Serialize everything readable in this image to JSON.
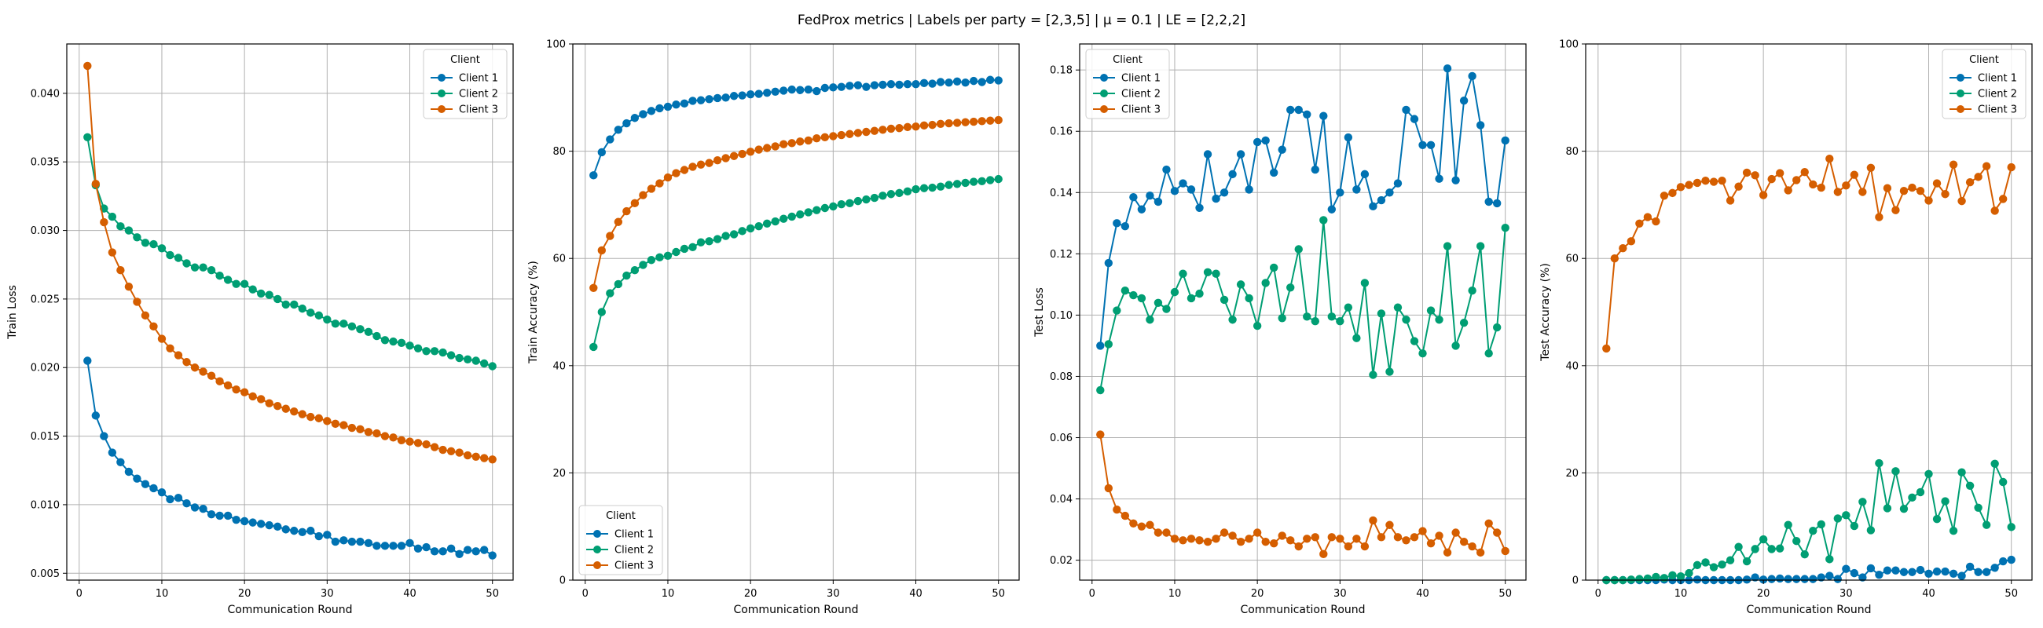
{
  "suptitle": "FedProx metrics | Labels per party = [2,3,5] | μ = 0.1 | LE = [2,2,2]",
  "legend_title": "Client",
  "series_names": [
    "Client 1",
    "Client 2",
    "Client 3"
  ],
  "colors": {
    "Client 1": "#0072b2",
    "Client 2": "#009e73",
    "Client 3": "#d55e00",
    "grid": "#b0b0b0"
  },
  "chart_data": [
    {
      "type": "line",
      "title": "",
      "xlabel": "Communication Round",
      "ylabel": "Train Loss",
      "xlim": [
        -1.5,
        52.5
      ],
      "ylim": [
        0.0045,
        0.0436
      ],
      "xticks": [
        0,
        10,
        20,
        30,
        40,
        50
      ],
      "yticks": [
        0.005,
        0.01,
        0.015,
        0.02,
        0.025,
        0.03,
        0.035,
        0.04
      ],
      "ytick_decimals": 3,
      "legend": "top-right",
      "grid": true,
      "x": [
        1,
        2,
        3,
        4,
        5,
        6,
        7,
        8,
        9,
        10,
        11,
        12,
        13,
        14,
        15,
        16,
        17,
        18,
        19,
        20,
        21,
        22,
        23,
        24,
        25,
        26,
        27,
        28,
        29,
        30,
        31,
        32,
        33,
        34,
        35,
        36,
        37,
        38,
        39,
        40,
        41,
        42,
        43,
        44,
        45,
        46,
        47,
        48,
        49,
        50
      ],
      "series": [
        {
          "name": "Client 1",
          "values": [
            0.0205,
            0.0165,
            0.015,
            0.0138,
            0.0131,
            0.0124,
            0.0119,
            0.0115,
            0.0112,
            0.0109,
            0.0104,
            0.0105,
            0.0101,
            0.0098,
            0.0097,
            0.0093,
            0.0092,
            0.0092,
            0.0089,
            0.0088,
            0.0087,
            0.0086,
            0.0085,
            0.0084,
            0.0082,
            0.0081,
            0.008,
            0.0081,
            0.0077,
            0.0078,
            0.0073,
            0.0074,
            0.0073,
            0.0073,
            0.0072,
            0.007,
            0.007,
            0.007,
            0.007,
            0.0072,
            0.0068,
            0.0069,
            0.0066,
            0.0066,
            0.0068,
            0.0064,
            0.0067,
            0.0066,
            0.0067,
            0.0063
          ]
        },
        {
          "name": "Client 2",
          "values": [
            0.0368,
            0.0333,
            0.0316,
            0.031,
            0.0303,
            0.03,
            0.0295,
            0.0291,
            0.029,
            0.0287,
            0.0282,
            0.028,
            0.0276,
            0.0273,
            0.0273,
            0.0271,
            0.0267,
            0.0264,
            0.0261,
            0.0261,
            0.0257,
            0.0254,
            0.0253,
            0.025,
            0.0246,
            0.0246,
            0.0243,
            0.024,
            0.0238,
            0.0235,
            0.0232,
            0.0232,
            0.023,
            0.0228,
            0.0226,
            0.0223,
            0.022,
            0.0219,
            0.0218,
            0.0216,
            0.0214,
            0.0212,
            0.0212,
            0.0211,
            0.0209,
            0.0207,
            0.0206,
            0.0205,
            0.0203,
            0.0201
          ]
        },
        {
          "name": "Client 3",
          "values": [
            0.042,
            0.0334,
            0.0306,
            0.0284,
            0.0271,
            0.0259,
            0.0248,
            0.0238,
            0.023,
            0.0221,
            0.0214,
            0.0209,
            0.0204,
            0.02,
            0.0197,
            0.0194,
            0.019,
            0.0187,
            0.0184,
            0.0182,
            0.0179,
            0.0177,
            0.0174,
            0.0172,
            0.017,
            0.0168,
            0.0166,
            0.0164,
            0.0163,
            0.0161,
            0.0159,
            0.0158,
            0.0156,
            0.0155,
            0.0153,
            0.0152,
            0.015,
            0.0149,
            0.0147,
            0.0146,
            0.0145,
            0.0144,
            0.0142,
            0.014,
            0.0139,
            0.0138,
            0.0136,
            0.0135,
            0.0134,
            0.0133
          ]
        }
      ]
    },
    {
      "type": "line",
      "title": "",
      "xlabel": "Communication Round",
      "ylabel": "Train Accuracy (%)",
      "xlim": [
        -1.5,
        52.5
      ],
      "ylim": [
        0,
        100
      ],
      "xticks": [
        0,
        10,
        20,
        30,
        40,
        50
      ],
      "yticks": [
        0,
        20,
        40,
        60,
        80,
        100
      ],
      "ytick_decimals": 0,
      "legend": "bottom-left",
      "grid": true,
      "x": [
        1,
        2,
        3,
        4,
        5,
        6,
        7,
        8,
        9,
        10,
        11,
        12,
        13,
        14,
        15,
        16,
        17,
        18,
        19,
        20,
        21,
        22,
        23,
        24,
        25,
        26,
        27,
        28,
        29,
        30,
        31,
        32,
        33,
        34,
        35,
        36,
        37,
        38,
        39,
        40,
        41,
        42,
        43,
        44,
        45,
        46,
        47,
        48,
        49,
        50
      ],
      "series": [
        {
          "name": "Client 1",
          "values": [
            75.5,
            79.8,
            82.2,
            84.0,
            85.2,
            86.2,
            86.9,
            87.5,
            88.0,
            88.3,
            88.7,
            88.9,
            89.4,
            89.5,
            89.7,
            89.9,
            90.0,
            90.3,
            90.4,
            90.6,
            90.7,
            90.9,
            91.1,
            91.3,
            91.5,
            91.4,
            91.5,
            91.2,
            91.8,
            91.9,
            92.0,
            92.2,
            92.3,
            92.0,
            92.3,
            92.4,
            92.5,
            92.4,
            92.5,
            92.5,
            92.7,
            92.6,
            92.9,
            92.8,
            93.0,
            92.8,
            93.1,
            92.9,
            93.3,
            93.2
          ]
        },
        {
          "name": "Client 2",
          "values": [
            43.5,
            50.0,
            53.5,
            55.2,
            56.8,
            57.8,
            58.8,
            59.7,
            60.2,
            60.5,
            61.2,
            61.8,
            62.1,
            63.0,
            63.2,
            63.6,
            64.2,
            64.5,
            65.1,
            65.6,
            66.0,
            66.5,
            66.9,
            67.4,
            67.8,
            68.2,
            68.6,
            69.0,
            69.4,
            69.7,
            70.1,
            70.3,
            70.7,
            71.0,
            71.3,
            71.7,
            72.0,
            72.2,
            72.5,
            72.9,
            73.1,
            73.2,
            73.4,
            73.7,
            73.9,
            74.1,
            74.3,
            74.4,
            74.6,
            74.8
          ]
        },
        {
          "name": "Client 3",
          "values": [
            54.5,
            61.5,
            64.2,
            66.8,
            68.8,
            70.3,
            71.8,
            73.0,
            74.0,
            75.1,
            75.9,
            76.5,
            77.1,
            77.5,
            77.8,
            78.3,
            78.7,
            79.1,
            79.5,
            79.9,
            80.3,
            80.6,
            80.9,
            81.3,
            81.5,
            81.8,
            82.0,
            82.4,
            82.6,
            82.8,
            83.0,
            83.2,
            83.4,
            83.6,
            83.8,
            84.0,
            84.2,
            84.3,
            84.5,
            84.6,
            84.8,
            84.9,
            85.1,
            85.2,
            85.3,
            85.4,
            85.5,
            85.6,
            85.7,
            85.8
          ]
        }
      ]
    },
    {
      "type": "line",
      "title": "",
      "xlabel": "Communication Round",
      "ylabel": "Test Loss",
      "xlim": [
        -1.5,
        52.5
      ],
      "ylim": [
        0.0135,
        0.1885
      ],
      "xticks": [
        0,
        10,
        20,
        30,
        40,
        50
      ],
      "yticks": [
        0.02,
        0.04,
        0.06,
        0.08,
        0.1,
        0.12,
        0.14,
        0.16,
        0.18
      ],
      "ytick_decimals": 2,
      "legend": "top-left",
      "grid": true,
      "x": [
        1,
        2,
        3,
        4,
        5,
        6,
        7,
        8,
        9,
        10,
        11,
        12,
        13,
        14,
        15,
        16,
        17,
        18,
        19,
        20,
        21,
        22,
        23,
        24,
        25,
        26,
        27,
        28,
        29,
        30,
        31,
        32,
        33,
        34,
        35,
        36,
        37,
        38,
        39,
        40,
        41,
        42,
        43,
        44,
        45,
        46,
        47,
        48,
        49,
        50
      ],
      "series": [
        {
          "name": "Client 1",
          "values": [
            0.09,
            0.117,
            0.13,
            0.129,
            0.1385,
            0.1345,
            0.139,
            0.137,
            0.1475,
            0.1405,
            0.143,
            0.141,
            0.135,
            0.1525,
            0.138,
            0.14,
            0.146,
            0.1525,
            0.141,
            0.1565,
            0.157,
            0.1465,
            0.154,
            0.167,
            0.167,
            0.1655,
            0.1475,
            0.165,
            0.1345,
            0.14,
            0.158,
            0.141,
            0.146,
            0.1355,
            0.1375,
            0.14,
            0.143,
            0.167,
            0.164,
            0.1555,
            0.1555,
            0.1445,
            0.1805,
            0.144,
            0.17,
            0.178,
            0.162,
            0.137,
            0.1365,
            0.157
          ]
        },
        {
          "name": "Client 2",
          "values": [
            0.0755,
            0.0905,
            0.1015,
            0.108,
            0.1065,
            0.1055,
            0.0985,
            0.104,
            0.102,
            0.1075,
            0.1135,
            0.1055,
            0.107,
            0.114,
            0.1135,
            0.105,
            0.0985,
            0.11,
            0.1055,
            0.0965,
            0.1105,
            0.1155,
            0.099,
            0.109,
            0.1215,
            0.0995,
            0.098,
            0.131,
            0.0995,
            0.098,
            0.1025,
            0.0925,
            0.1105,
            0.0805,
            0.1005,
            0.0815,
            0.1025,
            0.0985,
            0.0915,
            0.0875,
            0.1015,
            0.0985,
            0.1225,
            0.09,
            0.0975,
            0.108,
            0.1225,
            0.0875,
            0.096,
            0.1285
          ]
        },
        {
          "name": "Client 3",
          "values": [
            0.061,
            0.0435,
            0.0365,
            0.0345,
            0.032,
            0.031,
            0.0315,
            0.029,
            0.029,
            0.027,
            0.0265,
            0.027,
            0.0265,
            0.026,
            0.027,
            0.029,
            0.028,
            0.026,
            0.027,
            0.029,
            0.026,
            0.0255,
            0.028,
            0.0265,
            0.0245,
            0.027,
            0.0275,
            0.022,
            0.0275,
            0.027,
            0.0245,
            0.027,
            0.0245,
            0.033,
            0.0275,
            0.0315,
            0.0275,
            0.0265,
            0.0275,
            0.0295,
            0.0255,
            0.028,
            0.0225,
            0.029,
            0.026,
            0.0245,
            0.0225,
            0.032,
            0.029,
            0.023
          ]
        }
      ]
    },
    {
      "type": "line",
      "title": "",
      "xlabel": "Communication Round",
      "ylabel": "Test Accuracy (%)",
      "xlim": [
        -1.5,
        52.5
      ],
      "ylim": [
        0,
        100
      ],
      "xticks": [
        0,
        10,
        20,
        30,
        40,
        50
      ],
      "yticks": [
        0,
        20,
        40,
        60,
        80,
        100
      ],
      "ytick_decimals": 0,
      "legend": "top-right",
      "grid": true,
      "x": [
        1,
        2,
        3,
        4,
        5,
        6,
        7,
        8,
        9,
        10,
        11,
        12,
        13,
        14,
        15,
        16,
        17,
        18,
        19,
        20,
        21,
        22,
        23,
        24,
        25,
        26,
        27,
        28,
        29,
        30,
        31,
        32,
        33,
        34,
        35,
        36,
        37,
        38,
        39,
        40,
        41,
        42,
        43,
        44,
        45,
        46,
        47,
        48,
        49,
        50
      ],
      "series": [
        {
          "name": "Client 1",
          "values": [
            0.0,
            0.0,
            0.0,
            0.0,
            0.0,
            0.0,
            0.0,
            0.1,
            0.0,
            0.0,
            0.0,
            0.1,
            0.0,
            0.0,
            0.0,
            0.0,
            0.0,
            0.1,
            0.5,
            0.1,
            0.2,
            0.3,
            0.2,
            0.2,
            0.2,
            0.2,
            0.5,
            0.8,
            0.2,
            2.1,
            1.3,
            0.5,
            2.2,
            1.0,
            1.8,
            1.8,
            1.5,
            1.5,
            1.9,
            1.2,
            1.6,
            1.6,
            1.2,
            0.8,
            2.5,
            1.5,
            1.5,
            2.3,
            3.5,
            3.8
          ]
        },
        {
          "name": "Client 2",
          "values": [
            0.0,
            0.0,
            0.0,
            0.1,
            0.2,
            0.3,
            0.6,
            0.4,
            0.9,
            0.7,
            1.3,
            2.8,
            3.3,
            2.4,
            2.9,
            3.7,
            6.2,
            3.5,
            5.8,
            7.6,
            5.8,
            5.9,
            10.3,
            7.3,
            4.8,
            9.2,
            10.4,
            3.9,
            11.5,
            12.1,
            10.1,
            14.6,
            9.3,
            21.8,
            13.4,
            20.3,
            13.3,
            15.4,
            16.4,
            19.8,
            11.4,
            14.7,
            9.2,
            20.1,
            17.6,
            13.5,
            10.3,
            21.7,
            18.3,
            9.9
          ]
        },
        {
          "name": "Client 3",
          "values": [
            43.2,
            60.0,
            61.9,
            63.2,
            66.5,
            67.7,
            66.9,
            71.7,
            72.2,
            73.3,
            73.7,
            74.1,
            74.5,
            74.3,
            74.5,
            70.8,
            73.4,
            76.0,
            75.5,
            71.8,
            74.8,
            75.9,
            72.7,
            74.6,
            76.1,
            73.8,
            73.2,
            78.6,
            72.4,
            73.6,
            75.6,
            72.4,
            76.9,
            67.7,
            73.1,
            69.0,
            72.6,
            73.2,
            72.6,
            70.8,
            74.0,
            72.0,
            77.5,
            70.7,
            74.2,
            75.2,
            77.2,
            68.9,
            71.1,
            77.0
          ]
        }
      ]
    }
  ]
}
